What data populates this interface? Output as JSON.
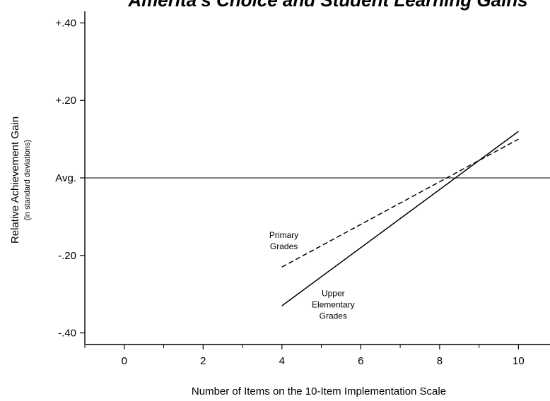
{
  "chart_data": {
    "type": "line",
    "title": "Amerita's Choice and Student Learning Gains",
    "xlabel": "Number of Items on the 10-Item Implementation Scale",
    "ylabel": "Relative Achievement Gain",
    "ylabel_sub": "(in standard deviations)",
    "xlim": [
      -1,
      10.8
    ],
    "ylim": [
      -0.43,
      0.43
    ],
    "x_ticks": [
      {
        "value": 0,
        "label": "0"
      },
      {
        "value": 2,
        "label": "2"
      },
      {
        "value": 4,
        "label": "4"
      },
      {
        "value": 6,
        "label": "6"
      },
      {
        "value": 8,
        "label": "8"
      },
      {
        "value": 10,
        "label": "10"
      }
    ],
    "y_ticks": [
      {
        "value": 0.4,
        "label": "+.40"
      },
      {
        "value": 0.2,
        "label": "+.20"
      },
      {
        "value": 0.0,
        "label": "Avg."
      },
      {
        "value": -0.2,
        "label": "-.20"
      },
      {
        "value": -0.4,
        "label": "-.40"
      }
    ],
    "reference_line": {
      "y": 0.0
    },
    "series": [
      {
        "name": "Primary Grades",
        "style": "dashed",
        "x": [
          4,
          10
        ],
        "y": [
          -0.23,
          0.1
        ]
      },
      {
        "name": "Upper Elementary Grades",
        "style": "solid",
        "x": [
          4,
          10
        ],
        "y": [
          -0.33,
          0.12
        ]
      }
    ],
    "annotations": [
      {
        "lines": [
          "Primary",
          "Grades"
        ],
        "x": 4.05,
        "y": -0.155,
        "anchor": "middle"
      },
      {
        "lines": [
          "Upper",
          "Elementary",
          "Grades"
        ],
        "x": 5.3,
        "y": -0.305,
        "anchor": "middle"
      }
    ],
    "grid": false,
    "legend": "none"
  }
}
